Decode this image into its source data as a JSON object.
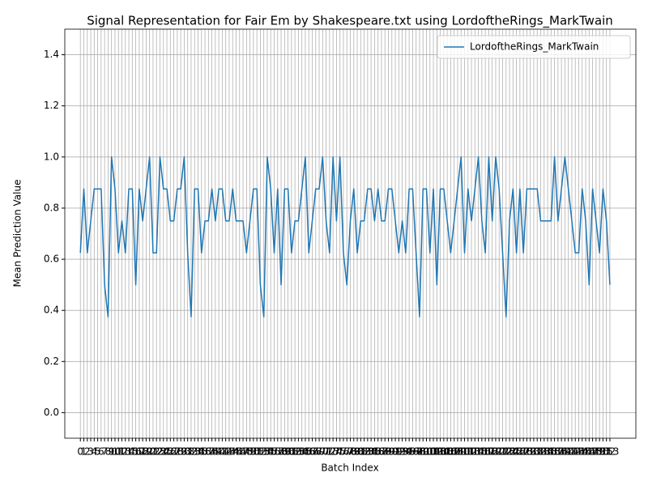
{
  "chart_data": {
    "type": "line",
    "title": "Signal Representation for Fair Em by Shakespeare.txt using LordoftheRings_MarkTwain",
    "x_label": "Batch Index",
    "y_label": "Mean Prediction Value",
    "x": [
      0,
      1,
      2,
      3,
      4,
      5,
      6,
      7,
      8,
      9,
      10,
      11,
      12,
      13,
      14,
      15,
      16,
      17,
      18,
      19,
      20,
      21,
      22,
      23,
      24,
      25,
      26,
      27,
      28,
      29,
      30,
      31,
      32,
      33,
      34,
      35,
      36,
      37,
      38,
      39,
      40,
      41,
      42,
      43,
      44,
      45,
      46,
      47,
      48,
      49,
      50,
      51,
      52,
      53,
      54,
      55,
      56,
      57,
      58,
      59,
      60,
      61,
      62,
      63,
      64,
      65,
      66,
      67,
      68,
      69,
      70,
      71,
      72,
      73,
      74,
      75,
      76,
      77,
      78,
      79,
      80,
      81,
      82,
      83,
      84,
      85,
      86,
      87,
      88,
      89,
      90,
      91,
      92,
      93,
      94,
      95,
      96,
      97,
      98,
      99,
      100,
      101,
      102,
      103,
      104,
      105,
      106,
      107,
      108,
      109,
      110,
      111,
      112,
      113,
      114,
      115,
      116,
      117,
      118,
      119,
      120,
      121,
      122,
      123,
      124,
      125,
      126,
      127,
      128,
      129,
      130,
      131,
      132,
      133,
      134,
      135,
      136,
      137,
      138,
      139,
      140,
      141,
      142,
      143,
      144,
      145,
      146,
      147,
      148,
      149,
      150,
      151,
      152,
      153
    ],
    "series": [
      {
        "name": "LordoftheRings_MarkTwain",
        "color": "#1f77b4",
        "values": [
          0.625,
          0.875,
          0.625,
          0.75,
          0.875,
          0.875,
          0.875,
          0.5,
          0.375,
          1,
          0.875,
          0.625,
          0.75,
          0.625,
          0.875,
          0.875,
          0.5,
          0.875,
          0.75,
          0.875,
          1,
          0.625,
          0.625,
          1,
          0.875,
          0.875,
          0.75,
          0.75,
          0.875,
          0.875,
          1,
          0.625,
          0.375,
          0.875,
          0.875,
          0.625,
          0.75,
          0.75,
          0.875,
          0.75,
          0.875,
          0.875,
          0.75,
          0.75,
          0.875,
          0.75,
          0.75,
          0.75,
          0.625,
          0.75,
          0.875,
          0.875,
          0.5,
          0.375,
          1,
          0.875,
          0.625,
          0.875,
          0.5,
          0.875,
          0.875,
          0.625,
          0.75,
          0.75,
          0.875,
          1,
          0.625,
          0.75,
          0.875,
          0.875,
          1,
          0.75,
          0.625,
          1,
          0.75,
          1,
          0.625,
          0.5,
          0.75,
          0.875,
          0.625,
          0.75,
          0.75,
          0.875,
          0.875,
          0.75,
          0.875,
          0.75,
          0.75,
          0.875,
          0.875,
          0.75,
          0.625,
          0.75,
          0.625,
          0.875,
          0.875,
          0.625,
          0.375,
          0.875,
          0.875,
          0.625,
          0.875,
          0.5,
          0.875,
          0.875,
          0.75,
          0.625,
          0.75,
          0.875,
          1,
          0.625,
          0.875,
          0.75,
          0.875,
          1,
          0.75,
          0.625,
          1,
          0.75,
          1,
          0.875,
          0.625,
          0.375,
          0.75,
          0.875,
          0.625,
          0.875,
          0.625,
          0.875,
          0.875,
          0.875,
          0.875,
          0.75,
          0.75,
          0.75,
          0.75,
          1,
          0.75,
          0.875,
          1,
          0.875,
          0.75,
          0.625,
          0.625,
          0.875,
          0.75,
          0.5,
          0.875,
          0.75,
          0.625,
          0.875,
          0.75,
          0.5
        ]
      }
    ],
    "xlim": [
      -4.5,
      160.5
    ],
    "xticks": [
      0,
      1,
      2,
      3,
      4,
      5,
      6,
      7,
      8,
      9,
      10,
      11,
      12,
      13,
      14,
      15,
      16,
      17,
      18,
      19,
      20,
      21,
      22,
      23,
      24,
      25,
      26,
      27,
      28,
      29,
      30,
      31,
      32,
      33,
      34,
      35,
      36,
      37,
      38,
      39,
      40,
      41,
      42,
      43,
      44,
      45,
      46,
      47,
      48,
      49,
      50,
      51,
      52,
      53,
      54,
      55,
      56,
      57,
      58,
      59,
      60,
      61,
      62,
      63,
      64,
      65,
      66,
      67,
      68,
      69,
      70,
      71,
      72,
      73,
      74,
      75,
      76,
      77,
      78,
      79,
      80,
      81,
      82,
      83,
      84,
      85,
      86,
      87,
      88,
      89,
      90,
      91,
      92,
      93,
      94,
      95,
      96,
      97,
      98,
      99,
      100,
      101,
      102,
      103,
      104,
      105,
      106,
      107,
      108,
      109,
      110,
      111,
      112,
      113,
      114,
      115,
      116,
      117,
      118,
      119,
      120,
      121,
      122,
      123,
      124,
      125,
      126,
      127,
      128,
      129,
      130,
      131,
      132,
      133,
      134,
      135,
      136,
      137,
      138,
      139,
      140,
      141,
      142,
      143,
      144,
      145,
      146,
      147,
      148,
      149,
      150,
      151,
      152,
      153
    ],
    "ylim": [
      -0.1,
      1.5
    ],
    "yticks": [
      {
        "value": 0,
        "label": "0.0"
      },
      0.2,
      0.4,
      0.6,
      0.8,
      {
        "value": 1,
        "label": "1.0"
      },
      1.2,
      1.4
    ],
    "grid": true,
    "legend": "upper right"
  }
}
